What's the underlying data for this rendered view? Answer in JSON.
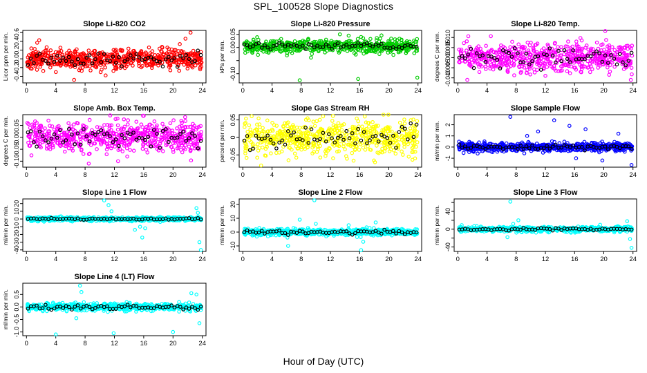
{
  "page": {
    "title": "SPL_100528  Slope Diagnostics",
    "xlabel": "Hour of Day (UTC)"
  },
  "colors": {
    "ref_series": "#000000",
    "co2": "#ff0000",
    "pressure": "#00cc00",
    "magenta": "#ff00ff",
    "yellow": "#ffff00",
    "blue": "#0000ff",
    "cyan": "#00ffff"
  },
  "chart_data": [
    {
      "type": "scatter",
      "title": "Slope Li-820 CO2",
      "ylabel": "Licor ppm per min.",
      "xlim": [
        -0.5,
        24.5
      ],
      "x_ticks": [
        0,
        4,
        8,
        12,
        16,
        20,
        24
      ],
      "ylim": [
        -0.55,
        0.65
      ],
      "y_ticks": [
        -0.4,
        -0.2,
        0.0,
        0.2,
        0.4,
        0.6
      ],
      "y_tick_labels": [
        "-0.4",
        "-0.2",
        "0.0",
        "0.2",
        "0.4",
        "0.6"
      ],
      "color": "#ff0000",
      "generator": {
        "center": 0.0,
        "spread": 0.12,
        "outliers": [
          [
            22.4,
            0.6
          ],
          [
            6.5,
            -0.48
          ],
          [
            21.7,
            0.46
          ],
          [
            10.8,
            -0.38
          ]
        ],
        "ref_spread": 0.08,
        "seed": 11
      }
    },
    {
      "type": "scatter",
      "title": "Slope Li-820 Pressure",
      "ylabel": "kPa per min.",
      "xlim": [
        -0.5,
        24.5
      ],
      "x_ticks": [
        0,
        4,
        8,
        12,
        16,
        20,
        24
      ],
      "ylim": [
        -0.135,
        0.065
      ],
      "y_ticks": [
        -0.1,
        -0.05,
        0.0,
        0.05
      ],
      "y_tick_labels": [
        "-0.10",
        "",
        "0.00",
        "0.05"
      ],
      "color": "#00cc00",
      "generator": {
        "center": 0.005,
        "spread": 0.012,
        "outliers": [
          [
            13.3,
            0.05
          ],
          [
            14.5,
            0.045
          ],
          [
            7.8,
            -0.125
          ],
          [
            15.8,
            -0.12
          ],
          [
            23.9,
            -0.115
          ],
          [
            16.2,
            0.04
          ]
        ],
        "ref_spread": 0.008,
        "seed": 23
      }
    },
    {
      "type": "scatter",
      "title": "Slope Li-820 Temp.",
      "ylabel": "degrees C per min.",
      "xlim": [
        -0.5,
        24.5
      ],
      "x_ticks": [
        0,
        4,
        8,
        12,
        16,
        20,
        24
      ],
      "ylim": [
        -0.0125,
        0.0135
      ],
      "y_ticks": [
        -0.01,
        -0.005,
        0.0,
        0.005,
        0.01
      ],
      "y_tick_labels": [
        "-0.010",
        "-0.005",
        "0.000",
        "0.005",
        "0.010"
      ],
      "color": "#ff00ff",
      "generator": {
        "center": 0.0,
        "spread": 0.0035,
        "outliers": [
          [
            20.2,
            0.0132
          ],
          [
            1.3,
            -0.011
          ],
          [
            23.7,
            -0.011
          ],
          [
            12.0,
            -0.009
          ]
        ],
        "ref_spread": 0.0025,
        "seed": 37
      }
    },
    {
      "type": "scatter",
      "title": "Slope Amb. Box Temp.",
      "ylabel": "degrees C per min.",
      "xlim": [
        -0.5,
        24.5
      ],
      "x_ticks": [
        0,
        4,
        8,
        12,
        16,
        20,
        24
      ],
      "ylim": [
        -0.125,
        0.095
      ],
      "y_ticks": [
        -0.1,
        -0.05,
        0.0,
        0.05
      ],
      "y_tick_labels": [
        "-0.10",
        "-0.05",
        "0.00",
        "0.05"
      ],
      "color": "#ff00ff",
      "generator": {
        "center": 0.0,
        "spread": 0.03,
        "outliers": [
          [
            16.0,
            0.09
          ],
          [
            8.5,
            -0.11
          ],
          [
            12.5,
            -0.1
          ],
          [
            3.0,
            0.07
          ]
        ],
        "ref_spread": 0.02,
        "seed": 41
      }
    },
    {
      "type": "scatter",
      "title": "Slope Gas Stream RH",
      "ylabel": "percent per min.",
      "xlim": [
        -0.5,
        24.5
      ],
      "x_ticks": [
        0,
        4,
        8,
        12,
        16,
        20,
        24
      ],
      "ylim": [
        -0.085,
        0.065
      ],
      "y_ticks": [
        -0.05,
        0.0,
        0.05
      ],
      "y_tick_labels": [
        "-0.05",
        "0",
        "0.05"
      ],
      "color": "#ffff00",
      "generator": {
        "center": 0.0,
        "spread": 0.025,
        "outliers": [
          [
            2.5,
            -0.08
          ],
          [
            23.6,
            -0.06
          ],
          [
            11.0,
            0.06
          ]
        ],
        "ref_spread": 0.02,
        "seed": 53
      }
    },
    {
      "type": "scatter",
      "title": "Slope Sample Flow",
      "ylabel": "ml/min per min.",
      "xlim": [
        -0.5,
        24.5
      ],
      "x_ticks": [
        0,
        4,
        8,
        12,
        16,
        20,
        24
      ],
      "ylim": [
        -1.8,
        2.9
      ],
      "y_ticks": [
        -1,
        0,
        1,
        2
      ],
      "y_tick_labels": [
        "-1",
        "0",
        "1",
        "2"
      ],
      "color": "#0000ff",
      "generator": {
        "center": 0.0,
        "spread": 0.18,
        "outliers": [
          [
            7.2,
            2.7
          ],
          [
            13.2,
            2.4
          ],
          [
            15.3,
            1.9
          ],
          [
            17.5,
            1.6
          ],
          [
            23.8,
            -1.6
          ],
          [
            19.8,
            -1.2
          ],
          [
            11.0,
            1.4
          ],
          [
            9.5,
            1.0
          ],
          [
            16.2,
            -1.0
          ],
          [
            22.0,
            1.2
          ]
        ],
        "ref_spread": 0.12,
        "seed": 67
      }
    },
    {
      "type": "scatter",
      "title": "Slope Line 1 Flow",
      "ylabel": "ml/min per min.",
      "xlim": [
        -0.5,
        24.5
      ],
      "x_ticks": [
        0,
        4,
        8,
        12,
        16,
        20,
        24
      ],
      "ylim": [
        -42,
        26
      ],
      "y_ticks": [
        -40,
        -30,
        -20,
        -10,
        0,
        10,
        20
      ],
      "y_tick_labels": [
        "-40",
        "-30",
        "-20",
        "-10",
        "0",
        "10",
        "20"
      ],
      "color": "#00ffff",
      "generator": {
        "center": 0.0,
        "spread": 1.2,
        "outliers": [
          [
            10.6,
            24
          ],
          [
            11.2,
            18
          ],
          [
            15.8,
            -24
          ],
          [
            14.8,
            -14
          ],
          [
            15.5,
            -10
          ],
          [
            23.8,
            -40
          ],
          [
            23.2,
            14
          ],
          [
            23.6,
            -30
          ],
          [
            11.6,
            10
          ],
          [
            16.2,
            -12
          ],
          [
            23.4,
            8
          ]
        ],
        "ref_spread": 0.5,
        "seed": 71
      }
    },
    {
      "type": "scatter",
      "title": "Slope Line 2 Flow",
      "ylabel": "ml/min per min.",
      "xlim": [
        -0.5,
        24.5
      ],
      "x_ticks": [
        0,
        4,
        8,
        12,
        16,
        20,
        24
      ],
      "ylim": [
        -14,
        24
      ],
      "y_ticks": [
        -10,
        0,
        10,
        20
      ],
      "y_tick_labels": [
        "-10",
        "0",
        "10",
        "20"
      ],
      "color": "#00ffff",
      "generator": {
        "center": 0.0,
        "spread": 1.2,
        "outliers": [
          [
            9.8,
            23
          ],
          [
            6.2,
            -10
          ],
          [
            16.2,
            -13
          ],
          [
            7.8,
            9
          ],
          [
            18.2,
            7
          ],
          [
            16.5,
            -7
          ],
          [
            14.5,
            5
          ],
          [
            10.0,
            6
          ]
        ],
        "ref_spread": 0.8,
        "seed": 83
      }
    },
    {
      "type": "scatter",
      "title": "Slope Line 3 Flow",
      "ylabel": "ml/min per min.",
      "xlim": [
        -0.5,
        24.5
      ],
      "x_ticks": [
        0,
        4,
        8,
        12,
        16,
        20,
        24
      ],
      "ylim": [
        -50,
        68
      ],
      "y_ticks": [
        -40,
        -20,
        0,
        20,
        40,
        60
      ],
      "y_tick_labels": [
        "-40",
        "",
        "0",
        "",
        "40",
        ""
      ],
      "color": "#00ffff",
      "generator": {
        "center": 0.0,
        "spread": 3.0,
        "outliers": [
          [
            7.2,
            62
          ],
          [
            8.3,
            20
          ],
          [
            6.8,
            -18
          ],
          [
            7.6,
            12
          ],
          [
            23.8,
            -42
          ],
          [
            23.2,
            18
          ],
          [
            23.6,
            -22
          ],
          [
            15.5,
            -8
          ],
          [
            19.5,
            10
          ]
        ],
        "ref_spread": 1.5,
        "seed": 97
      }
    },
    {
      "type": "scatter",
      "title": "Slope Line 4 (LT) Flow",
      "ylabel": "ml/min per min.",
      "xlim": [
        -0.5,
        24.5
      ],
      "x_ticks": [
        0,
        4,
        8,
        12,
        16,
        20,
        24
      ],
      "ylim": [
        -1.15,
        0.95
      ],
      "y_ticks": [
        -1.0,
        -0.5,
        0.0,
        0.5
      ],
      "y_tick_labels": [
        "-1.0",
        "-0.5",
        "0.0",
        "0.5"
      ],
      "color": "#00ffff",
      "generator": {
        "center": 0.0,
        "spread": 0.07,
        "outliers": [
          [
            4.0,
            -1.1
          ],
          [
            11.9,
            -1.05
          ],
          [
            20.0,
            -1.0
          ],
          [
            7.3,
            0.85
          ],
          [
            23.6,
            -0.65
          ],
          [
            6.8,
            -0.45
          ],
          [
            22.5,
            0.55
          ],
          [
            23.2,
            0.5
          ],
          [
            7.5,
            0.6
          ]
        ],
        "ref_spread": 0.05,
        "seed": 101
      }
    }
  ]
}
